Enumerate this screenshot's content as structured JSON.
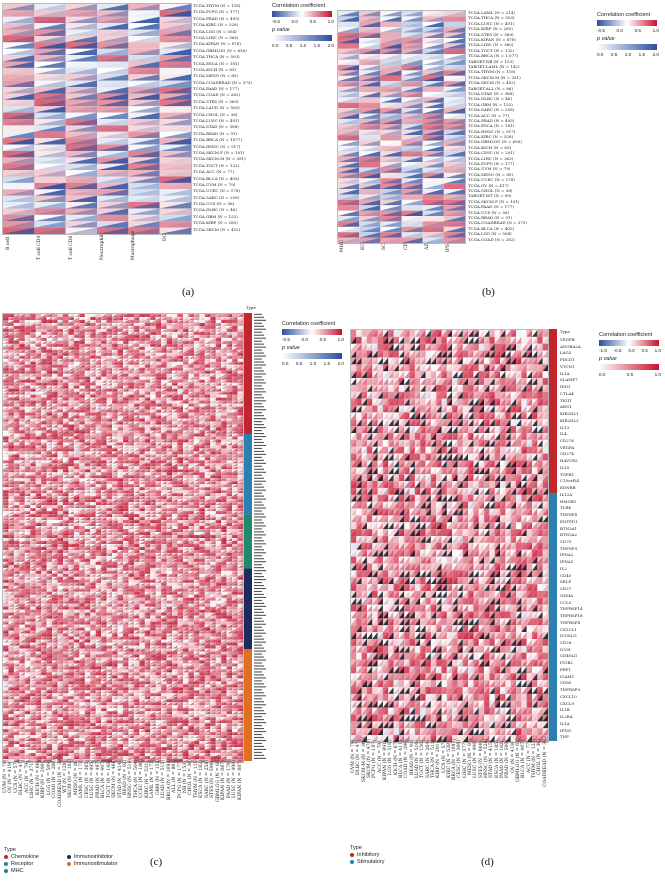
{
  "panel_labels": {
    "a": "(a)",
    "b": "(b)",
    "c": "(c)",
    "d": "(d)"
  },
  "legend": {
    "title": "Correlation coefficient",
    "ticks": [
      "-0.5",
      "0.0",
      "0.5",
      "1.0"
    ],
    "pvalue": "p value",
    "pticks": [
      "0.0",
      "0.5",
      "1.0",
      "1.5",
      "2.0"
    ],
    "ticks_d": [
      "-1.0",
      "-0.5",
      "0.0",
      "0.5",
      "1.0"
    ],
    "pticks_d": [
      "0.0",
      "0.5",
      "1.0"
    ],
    "colors": {
      "neg": "#2b4f9e",
      "mid": "#ffffff",
      "pos": "#c8102e"
    }
  },
  "panel_a": {
    "cols": [
      "B cell",
      "T cell CD4",
      "T cell CD8",
      "Neutrophil",
      "Macrophage",
      "DC"
    ],
    "rows": [
      "TCGA.THYM (N = 118)",
      "TCGA.PCPG (N = 177)",
      "TCGA.PRAD (N = 495)",
      "TCGA.KIRC (N = 528)",
      "TCGA.LGG (N = 504)",
      "TCGA.LIHC (N = 363)",
      "TCGA.KIPAN (N = 878)",
      "TCGA.GBMLGG (N = 656)",
      "TCGA.THCA (N = 503)",
      "TCGA.ESCA (N = 181)",
      "TCGA.KICH (N = 65)",
      "TCGA.MESO (N = 85)",
      "TCGA.COADREAD (N = 373)",
      "TCGA.PAAD (N = 177)",
      "TCGA.COAD (N = 282)",
      "TCGA.STES (N = 569)",
      "TCGA.LAUD (N = 500)",
      "TCGA.CHOL (N = 36)",
      "TCGA.LUSC (N = 491)",
      "TCGA.STAD (N = 388)",
      "TCGA.READ (N = 91)",
      "TCGA.BRCA (N = 1077)",
      "TCGA.HNSC (N = 517)",
      "TCGA.SKCM.P (N = 101)",
      "TCGA.SKCM.M (N = 351)",
      "TCGA.TGCT (N = 132)",
      "TCGA.ACC (N = 77)",
      "TCGA.BLCA (N = 405)",
      "TCGA.UVM (N = 79)",
      "TCGA.UCEC (N = 178)",
      "TCGA.SARC (N = 258)",
      "TCGA.UCS (N = 56)",
      "TCGA.DLBC (N = 46)",
      "TCGA.GBM (N = 152)",
      "TCGA.KIRP (N = 285)",
      "TCGA.SKCM (N = 452)"
    ]
  },
  "panel_b": {
    "cols": [
      "MHC",
      "EC",
      "SC",
      "CP",
      "AZ",
      "IPS"
    ],
    "rows": [
      "TCGA.LAML (N = 214)",
      "TCGA.THCA (N = 503)",
      "TCGA.LUSC (N = 491)",
      "TCGA.KIRP (N = 285)",
      "TCGA.STES (N = 569)",
      "TCGA.KIPAN (N = 878)",
      "TCGA.LIHC (N = 360)",
      "TCGA.TGCT (N = 132)",
      "TCGA.BRCA (N = 1,077)",
      "TARGET.NB (N = 153)",
      "TARGET.LAML (N = 142)",
      "TCGA.THYM (N = 118)",
      "TCGA.SKCM.M (N = 351)",
      "TCGA.SKCM (N = 452)",
      "TARGET.ALL (N = 86)",
      "TCGA.STAD (N = 388)",
      "TCGA.DLBC (N = 46)",
      "TCGA.GBM (N = 152)",
      "TCGA.SARC (N = 258)",
      "TCGA.ACC (N = 77)",
      "TCGA.PRAD (N = 495)",
      "TCGA.ESCA (N = 181)",
      "TCGA.HNSC (N = 517)",
      "TCGA.KIRC (N = 528)",
      "TCGA.GBMLGG (N = 656)",
      "TCGA.KICH (N = 65)",
      "TCGA.CESC (N = 291)",
      "TCGA.LIHC (N = 363)",
      "TCGA.PCPG (N = 177)",
      "TCGA.UVM (N = 79)",
      "TCGA.MESO (N = 85)",
      "TCGA.UCEC (N = 178)",
      "TCGA.OV (N = 417)",
      "TCGA.CHOL (N = 36)",
      "TARGET.WT (N = 80)",
      "TCGA.SKCM.P (N = 101)",
      "TCGA.PAAD (N = 177)",
      "TCGA.UCS (N = 56)",
      "TCGA.READ (N = 91)",
      "TCGA.COADREAD (N = 373)",
      "TCGA.BLCA (N = 405)",
      "TCGA.LGG (N = 504)",
      "TCGA.COAD (N = 282)"
    ]
  },
  "panel_c": {
    "type_title": "Type",
    "types": [
      {
        "label": "Chemokine",
        "color": "#c0262d"
      },
      {
        "label": "Receptor",
        "color": "#2b7fb1"
      },
      {
        "label": "MHC",
        "color": "#1f8a6a"
      },
      {
        "label": "Immunoinhibitor",
        "color": "#1b2b5e"
      },
      {
        "label": "Immunostimulator",
        "color": "#e06f1f"
      }
    ],
    "cols": [
      "UVM (N = 79)",
      "OV (N = 419)",
      "UCS (N = 57)",
      "DLBC (N = 47)",
      "ACC (N = 79)",
      "LIHC (N = 371)",
      "KICH (N = 66)",
      "KIRP (N = 290)",
      "LGG (N = 509)",
      "COAD (N = 288)",
      "COADREAD (N = 380)",
      "WT (N = 120)",
      "SKCM (N = 102)",
      "MESO (N = 86)",
      "LAML (N = 173)",
      "CESC (N = 305)",
      "LUSC (N = 495)",
      "PRAD (N = 497)",
      "BLCA (N = 407)",
      "TGCT (N = 148)",
      "SKCM (N = 468)",
      "STAD (N = 414)",
      "READ (N = 92)",
      "HNSC (N = 519)",
      "THCA (N = 504)",
      "UCEC (N = 180)",
      "KIRC (N = 531)",
      "LAML (N = 173)",
      "GBM (N = 153)",
      "LUAD (N = 515)",
      "BRCA (N = 1092)",
      "ALL (N = 86)",
      "PCPG (N = 177)",
      "NB (N = 153)",
      "CHOL (N = 36)",
      "THYM (N = 119)",
      "ESCA (N = 182)",
      "SARC (N = 258)",
      "STES (N = 596)",
      "GBMLGG (N = 662)",
      "KIPAN (N = 887)",
      "PAAD (N = 178)",
      "LUSC (N = 498)",
      "KIPAN (N = 887)"
    ]
  },
  "panel_d": {
    "type_title": "Type",
    "types": [
      {
        "label": "Inhibitory",
        "color": "#c0262d"
      },
      {
        "label": "Stimulatory",
        "color": "#2b7fb1"
      }
    ],
    "rows": [
      "VEGFB",
      "ADORA2A",
      "LAG3",
      "PDCD1",
      "VTCN1",
      "IL1A",
      "SLAMF7",
      "IDO1",
      "CTLA4",
      "TIGIT",
      "ARG1",
      "KIR2DL1",
      "KIR2DL3",
      "IL13",
      "IL4",
      "CD276",
      "VEGFA",
      "CD274",
      "HAVCR2",
      "IL10",
      "TGFB1",
      "C10orf54",
      "EDNRB",
      "IL12A",
      "HMGB1",
      "TLR4",
      "TNFSF4",
      "ENTPD1",
      "BTN3A1",
      "BTN3A2",
      "CD70",
      "TNFSF9",
      "IFNA2",
      "IFNA1",
      "IL2",
      "CD40",
      "SELP",
      "CD27",
      "GZMA",
      "CCL5",
      "TNFRSF14",
      "TNFRSF18",
      "TNFRSF4",
      "CX3CL1",
      "ICOSLG",
      "CD28",
      "ICOS",
      "CD40LG",
      "ITGB2",
      "PRF1",
      "ICAM1",
      "CD80",
      "TNFRSF9",
      "CXCL10",
      "CXCL9",
      "IL1B",
      "IL2RA",
      "IL1A",
      "IFNG",
      "TNF"
    ],
    "cols": [
      "UVM (N = 79)",
      "DLBC (N = 47)",
      "SKCM-M (N = 369)",
      "SKCM (N = 470)",
      "PCPG (N = 187)",
      "ACC (N = 79)",
      "KIPAN (N = 891)",
      "LGG (N = 516)",
      "KICH (N = 67)",
      "BLCA (N = 411)",
      "COAD (N = 290)",
      "READ (N = 93)",
      "LUAD (N = 516)",
      "TGCT (N = 150)",
      "SARC (N = 264)",
      "THCA (N = 513)",
      "KIRP (N = 291)",
      "UCS (N = 57)",
      "KIRC (N = 538)",
      "BRCA (N = 1097)",
      "CESC (N = 306)",
      "LIHC (N = 377)",
      "MESO (N = 87)",
      "LUSC (N = 498)",
      "STES (N = 600)",
      "HNSC (N = 528)",
      "STAD (N = 415)",
      "ESCA (N = 185)",
      "PAAD (N = 182)",
      "PRAD (N = 500)",
      "OV (N = 419)",
      "GBMLGG (N = 675)",
      "BLCA (N = 407)",
      "ACC (N = 77)",
      "THYM (N = 121)",
      "CHOL (N = 36)",
      "COADREAD (N = 383)"
    ]
  }
}
